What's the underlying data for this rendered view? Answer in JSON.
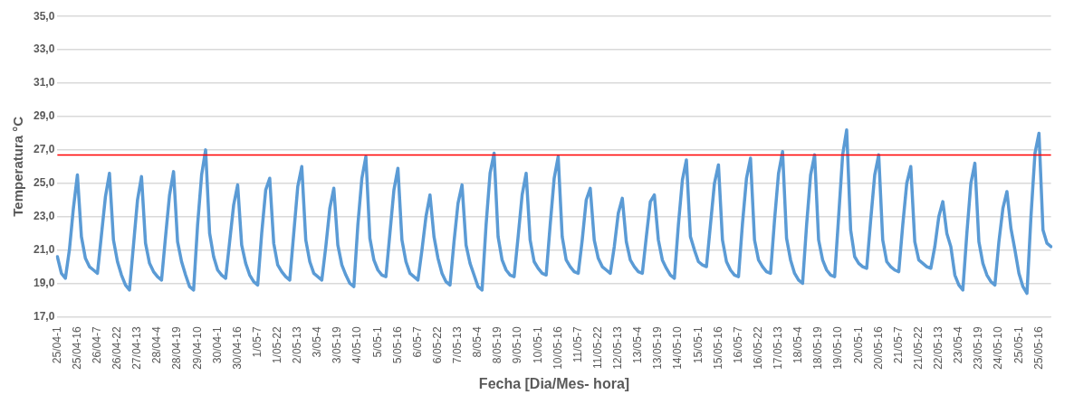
{
  "chart_data": {
    "type": "line",
    "xlabel": "Fecha [Dia/Mes- hora]",
    "ylabel": "Temperatura °C",
    "categories": [
      "25/04-1",
      null,
      null,
      null,
      null,
      "25/04-16",
      null,
      null,
      null,
      null,
      "26/04-7",
      null,
      null,
      null,
      null,
      "26/04-22",
      null,
      null,
      null,
      null,
      "27/04-13",
      null,
      null,
      null,
      null,
      "28/04-4",
      null,
      null,
      null,
      null,
      "28/04-19",
      null,
      null,
      null,
      null,
      "29/04-10",
      null,
      null,
      null,
      null,
      "30/04-1",
      null,
      null,
      null,
      null,
      "30/04-16",
      null,
      null,
      null,
      null,
      "1/05-7",
      null,
      null,
      null,
      null,
      "1/05-22",
      null,
      null,
      null,
      null,
      "2/05-13",
      null,
      null,
      null,
      null,
      "3/05-4",
      null,
      null,
      null,
      null,
      "3/05-19",
      null,
      null,
      null,
      null,
      "4/05-10",
      null,
      null,
      null,
      null,
      "5/05-1",
      null,
      null,
      null,
      null,
      "5/05-16",
      null,
      null,
      null,
      null,
      "6/05-7",
      null,
      null,
      null,
      null,
      "6/05-22",
      null,
      null,
      null,
      null,
      "7/05-13",
      null,
      null,
      null,
      null,
      "8/05-4",
      null,
      null,
      null,
      null,
      "8/05-19",
      null,
      null,
      null,
      null,
      "9/05-10",
      null,
      null,
      null,
      null,
      "10/05-1",
      null,
      null,
      null,
      null,
      "10/05-16",
      null,
      null,
      null,
      null,
      "11/05-7",
      null,
      null,
      null,
      null,
      "11/05-22",
      null,
      null,
      null,
      null,
      "12/05-13",
      null,
      null,
      null,
      null,
      "13/05-4",
      null,
      null,
      null,
      null,
      "13/05-19",
      null,
      null,
      null,
      null,
      "14/05-10",
      null,
      null,
      null,
      null,
      "15/05-1",
      null,
      null,
      null,
      null,
      "15/05-16",
      null,
      null,
      null,
      null,
      "16/05-7",
      null,
      null,
      null,
      null,
      "16/05-22",
      null,
      null,
      null,
      null,
      "17/05-13",
      null,
      null,
      null,
      null,
      "18/05-4",
      null,
      null,
      null,
      null,
      "18/05-19",
      null,
      null,
      null,
      null,
      "19/05-10",
      null,
      null,
      null,
      null,
      "20/05-1",
      null,
      null,
      null,
      null,
      "20/05-16",
      null,
      null,
      null,
      null,
      "21/05-7",
      null,
      null,
      null,
      null,
      "21/05-22",
      null,
      null,
      null,
      null,
      "22/05-13",
      null,
      null,
      null,
      null,
      "23/05-4",
      null,
      null,
      null,
      null,
      "23/05-19",
      null,
      null,
      null,
      null,
      "24/05-10",
      null,
      null,
      null,
      null,
      "25/05-1",
      null,
      null,
      null,
      null,
      "25/05-16",
      null,
      null,
      null
    ],
    "ylim": [
      17,
      35
    ],
    "yticks": [
      {
        "value": 17,
        "label": "17,0"
      },
      {
        "value": 19,
        "label": "19,0"
      },
      {
        "value": 21,
        "label": "21,0"
      },
      {
        "value": 23,
        "label": "23,0"
      },
      {
        "value": 25,
        "label": "25,0"
      },
      {
        "value": 27,
        "label": "27,0"
      },
      {
        "value": 29,
        "label": "29,0"
      },
      {
        "value": 31,
        "label": "31,0"
      },
      {
        "value": 33,
        "label": "33,0"
      },
      {
        "value": 35,
        "label": "35,0"
      }
    ],
    "grid": "y",
    "legend": false,
    "marker": "none",
    "line_style": "solid",
    "ref_lines": [
      {
        "axis": "y",
        "value": 26.7,
        "color": "#ff0000"
      }
    ],
    "series": [
      {
        "color": "#5b9bd5",
        "values": [
          20.6,
          19.6,
          19.3,
          21.0,
          23.5,
          25.5,
          21.8,
          20.5,
          20.0,
          19.8,
          19.6,
          21.9,
          24.2,
          25.6,
          21.6,
          20.3,
          19.5,
          18.9,
          18.6,
          21.3,
          24.0,
          25.4,
          21.4,
          20.2,
          19.7,
          19.4,
          19.2,
          21.8,
          24.3,
          25.7,
          21.5,
          20.3,
          19.5,
          18.8,
          18.6,
          22.5,
          25.5,
          27.0,
          22.0,
          20.6,
          19.8,
          19.5,
          19.3,
          21.5,
          23.7,
          24.9,
          21.3,
          20.2,
          19.5,
          19.1,
          18.9,
          22.0,
          24.6,
          25.3,
          21.4,
          20.1,
          19.7,
          19.4,
          19.2,
          22.0,
          24.8,
          26.0,
          21.6,
          20.3,
          19.6,
          19.4,
          19.2,
          21.2,
          23.5,
          24.7,
          21.3,
          20.1,
          19.5,
          19.0,
          18.8,
          22.5,
          25.3,
          26.6,
          21.7,
          20.4,
          19.8,
          19.5,
          19.4,
          22.0,
          24.6,
          25.9,
          21.6,
          20.3,
          19.6,
          19.4,
          19.2,
          21.0,
          23.0,
          24.3,
          21.8,
          20.5,
          19.6,
          19.1,
          18.9,
          21.5,
          23.8,
          24.9,
          21.3,
          20.2,
          19.5,
          18.8,
          18.6,
          22.5,
          25.6,
          26.8,
          21.8,
          20.4,
          19.8,
          19.5,
          19.4,
          21.8,
          24.3,
          25.6,
          21.6,
          20.3,
          19.9,
          19.6,
          19.5,
          22.5,
          25.3,
          26.6,
          21.8,
          20.4,
          20.0,
          19.7,
          19.6,
          21.6,
          24.0,
          24.7,
          21.6,
          20.5,
          20.0,
          19.8,
          19.6,
          21.2,
          23.2,
          24.1,
          21.5,
          20.4,
          20.0,
          19.7,
          19.6,
          21.8,
          23.9,
          24.3,
          21.6,
          20.4,
          19.9,
          19.5,
          19.3,
          22.5,
          25.2,
          26.4,
          21.8,
          21.0,
          20.3,
          20.1,
          20.0,
          22.5,
          25.0,
          26.1,
          21.6,
          20.3,
          19.8,
          19.5,
          19.4,
          22.6,
          25.3,
          26.5,
          21.6,
          20.4,
          20.0,
          19.7,
          19.6,
          22.8,
          25.6,
          26.9,
          21.7,
          20.4,
          19.6,
          19.2,
          19.0,
          22.5,
          25.5,
          26.7,
          21.6,
          20.4,
          19.8,
          19.5,
          19.4,
          23.0,
          26.7,
          28.2,
          22.2,
          20.6,
          20.2,
          20.0,
          19.9,
          22.8,
          25.5,
          26.7,
          21.6,
          20.3,
          20.0,
          19.8,
          19.7,
          22.5,
          25.0,
          26.0,
          21.5,
          20.4,
          20.2,
          20.0,
          19.9,
          21.2,
          23.0,
          23.9,
          22.0,
          21.2,
          19.5,
          18.9,
          18.6,
          22.0,
          25.0,
          26.2,
          21.5,
          20.2,
          19.5,
          19.1,
          18.9,
          21.5,
          23.5,
          24.5,
          22.3,
          21.0,
          19.6,
          18.8,
          18.4,
          23.0,
          26.8,
          28.0,
          22.2,
          21.4,
          21.2
        ]
      }
    ]
  }
}
